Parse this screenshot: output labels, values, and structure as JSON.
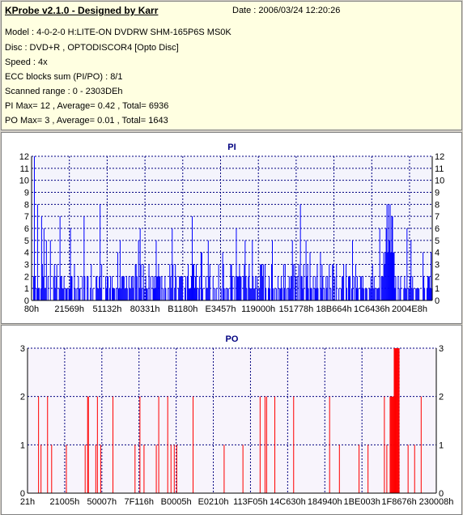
{
  "info": {
    "title": "KProbe v2.1.0 - Designed by Karr",
    "date": "Date : 2006/03/24 12:20:26",
    "lines": [
      "Model : 4-0-2-0 H:LITE-ON DVDRW SHM-165P6S MS0K",
      "Disc : DVD+R , OPTODISCOR4 [Opto Disc]",
      "Speed : 4x",
      "ECC blocks sum (PI/PO) : 8/1",
      "Scanned range : 0 - 2303DEh",
      "PI Max= 12 , Average= 0.42 , Total= 6936",
      "PO Max= 3 , Average= 0.01 , Total= 1643"
    ]
  },
  "colors": {
    "pi_bar": "#0000ff",
    "po_bar": "#ff0000",
    "grid": "#000080",
    "plot_bg_pi": "#f4f4fc",
    "plot_bg_po": "#f8f4fc"
  },
  "chart_data": [
    {
      "type": "bar",
      "title": "PI",
      "xlabel": "",
      "ylabel": "",
      "ylim": [
        0,
        12
      ],
      "y_ticks": [
        0,
        1,
        2,
        3,
        4,
        5,
        6,
        7,
        8,
        9,
        10,
        11,
        12
      ],
      "x_tick_labels": [
        "80h",
        "21569h",
        "51132h",
        "80331h",
        "B1180h",
        "E3457h",
        "119000h",
        "151778h",
        "18B664h",
        "1C6436h",
        "2004E8h"
      ],
      "grid": true,
      "note_series": "bar heights per sampled position across the scanned range (0 - 2303DEh)",
      "x_range": [
        0,
        1
      ],
      "values": []
    },
    {
      "type": "bar",
      "title": "PO",
      "xlabel": "",
      "ylabel": "",
      "ylim": [
        0,
        3
      ],
      "y_ticks": [
        0,
        1,
        2,
        3
      ],
      "x_tick_labels": [
        "21h",
        "21005h",
        "50007h",
        "7F116h",
        "B0005h",
        "E0210h",
        "113F05h",
        "14C630h",
        "184940h",
        "1BE003h",
        "1F8676h",
        "230008h"
      ],
      "grid": true,
      "values": []
    }
  ]
}
